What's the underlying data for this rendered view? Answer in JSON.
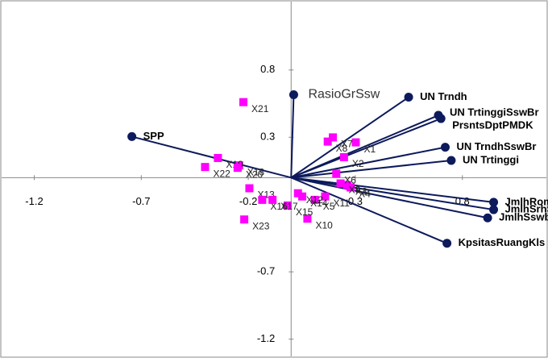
{
  "chart_data": {
    "type": "biplot",
    "xlim": [
      -1.36,
      1.2
    ],
    "ylim": [
      -1.34,
      1.32
    ],
    "xticks": [
      -1.2,
      -0.7,
      -0.2,
      0.3,
      0.8
    ],
    "yticks": [
      0.8,
      0.3,
      -0.7,
      -1.2
    ],
    "vector_color": "#0d1a5c",
    "point_color": "#ff00ff",
    "vectors": [
      {
        "name": "SPP",
        "x": -0.744,
        "y": 0.305
      },
      {
        "name": "RasioGrSsw",
        "x": 0.012,
        "y": 0.616
      },
      {
        "name": "UN Trndh",
        "x": 0.549,
        "y": 0.598
      },
      {
        "name": "UN TrtinggiSswBr",
        "x": 0.688,
        "y": 0.463
      },
      {
        "name": "PrsntsDptPMDK",
        "x": 0.7,
        "y": 0.439
      },
      {
        "name": "UN TrndhSswBr",
        "x": 0.72,
        "y": 0.226
      },
      {
        "name": "UN Trtinggi",
        "x": 0.748,
        "y": 0.128
      },
      {
        "name": "JmlhRombel",
        "x": 0.946,
        "y": -0.183
      },
      {
        "name": "JmlhSrhSsw",
        "x": 0.946,
        "y": -0.238
      },
      {
        "name": "JmlhSswbr",
        "x": 0.918,
        "y": -0.299
      },
      {
        "name": "KpsitasRuangKls",
        "x": 0.728,
        "y": -0.488
      }
    ],
    "points": [
      {
        "label": "X1",
        "x": 0.302,
        "y": 0.262
      },
      {
        "label": "X2",
        "x": 0.247,
        "y": 0.152
      },
      {
        "label": "X3",
        "x": 0.262,
        "y": -0.055
      },
      {
        "label": "X4",
        "x": 0.278,
        "y": -0.073
      },
      {
        "label": "X5",
        "x": 0.111,
        "y": -0.165
      },
      {
        "label": "X6",
        "x": 0.211,
        "y": 0.03
      },
      {
        "label": "X7",
        "x": 0.195,
        "y": 0.299
      },
      {
        "label": "X8",
        "x": 0.171,
        "y": 0.268
      },
      {
        "label": "X9",
        "x": 0.231,
        "y": -0.043
      },
      {
        "label": "X10",
        "x": 0.076,
        "y": -0.305
      },
      {
        "label": "X11",
        "x": 0.159,
        "y": -0.14
      },
      {
        "label": "X12",
        "x": 0.032,
        "y": -0.116
      },
      {
        "label": "X13",
        "x": -0.195,
        "y": -0.079
      },
      {
        "label": "X14",
        "x": 0.052,
        "y": -0.14
      },
      {
        "label": "X15",
        "x": -0.016,
        "y": -0.207
      },
      {
        "label": "X16",
        "x": -0.135,
        "y": -0.165
      },
      {
        "label": "X17",
        "x": -0.087,
        "y": -0.165
      },
      {
        "label": "X18",
        "x": -0.243,
        "y": 0.091
      },
      {
        "label": "X19",
        "x": -0.342,
        "y": 0.146
      },
      {
        "label": "X20",
        "x": -0.25,
        "y": 0.073
      },
      {
        "label": "X21",
        "x": -0.223,
        "y": 0.561
      },
      {
        "label": "X22",
        "x": -0.402,
        "y": 0.079
      },
      {
        "label": "X23",
        "x": -0.219,
        "y": -0.311
      }
    ]
  }
}
